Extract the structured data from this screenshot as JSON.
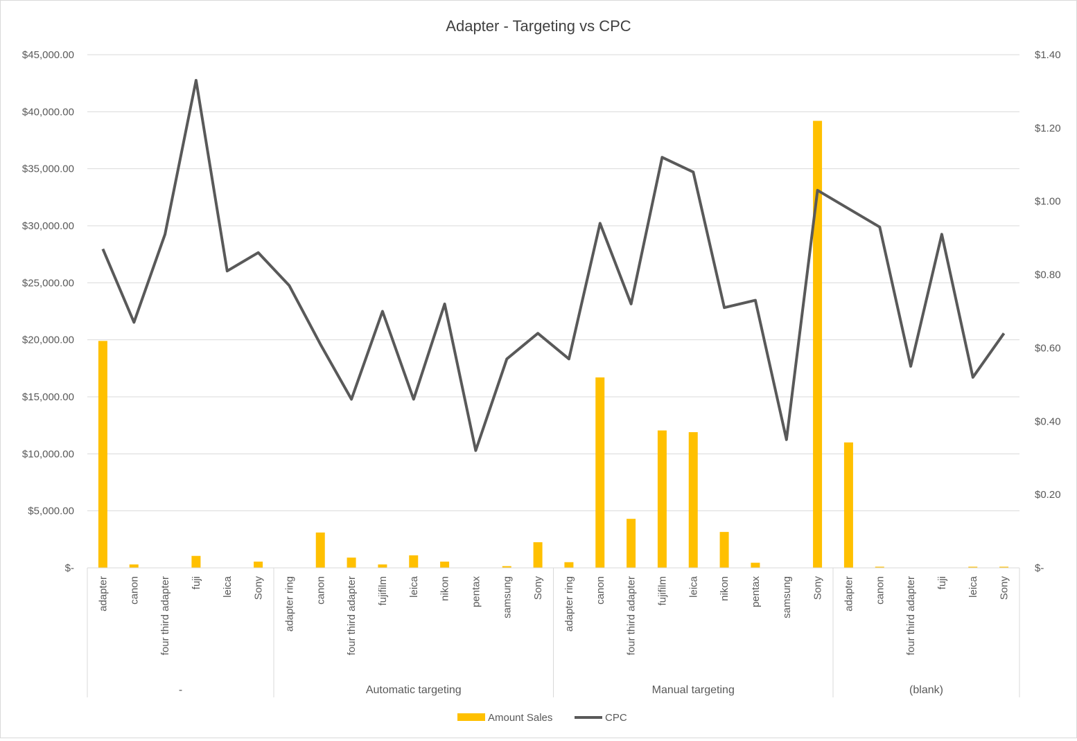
{
  "chart_data": {
    "type": "bar",
    "title": "Adapter - Targeting vs CPC",
    "groups": [
      {
        "label": "-",
        "categories": [
          "adapter",
          "canon",
          "four third adapter",
          "fuji",
          "leica",
          "Sony"
        ]
      },
      {
        "label": "Automatic targeting",
        "categories": [
          "adapter ring",
          "canon",
          "four third adapter",
          "fujifilm",
          "leica",
          "nikon",
          "pentax",
          "samsung",
          "Sony"
        ]
      },
      {
        "label": "Manual targeting",
        "categories": [
          "adapter ring",
          "canon",
          "four third adapter",
          "fujifilm",
          "leica",
          "nikon",
          "pentax",
          "samsung",
          "Sony"
        ]
      },
      {
        "label": "(blank)",
        "categories": [
          "adapter",
          "canon",
          "four third adapter",
          "fuji",
          "leica",
          "Sony"
        ]
      }
    ],
    "series": [
      {
        "name": "Amount Sales",
        "type": "bar",
        "axis": "left",
        "color": "#FFC000",
        "values": [
          19900,
          300,
          0,
          1050,
          0,
          550,
          0,
          3100,
          900,
          300,
          1100,
          550,
          0,
          150,
          2250,
          500,
          16700,
          4300,
          12050,
          11900,
          3150,
          450,
          0,
          39200,
          11000,
          100,
          0,
          0,
          100,
          100
        ]
      },
      {
        "name": "CPC",
        "type": "line",
        "axis": "right",
        "color": "#595959",
        "values": [
          0.87,
          0.67,
          0.91,
          1.33,
          0.81,
          0.86,
          0.77,
          0.61,
          0.46,
          0.7,
          0.46,
          0.72,
          0.32,
          0.57,
          0.64,
          0.57,
          0.94,
          0.72,
          1.12,
          1.08,
          0.71,
          0.73,
          0.35,
          1.03,
          0.98,
          0.93,
          0.55,
          0.91,
          0.52,
          0.64
        ]
      }
    ],
    "y_left": {
      "ylim": [
        0,
        45000
      ],
      "ticks": [
        "$-",
        "$5,000.00",
        "$10,000.00",
        "$15,000.00",
        "$20,000.00",
        "$25,000.00",
        "$30,000.00",
        "$35,000.00",
        "$40,000.00",
        "$45,000.00"
      ]
    },
    "y_right": {
      "ylim": [
        0,
        1.4
      ],
      "ticks": [
        "$-",
        "$0.20",
        "$0.40",
        "$0.60",
        "$0.80",
        "$1.00",
        "$1.20",
        "$1.40"
      ]
    },
    "grid": true,
    "legend_position": "bottom"
  }
}
